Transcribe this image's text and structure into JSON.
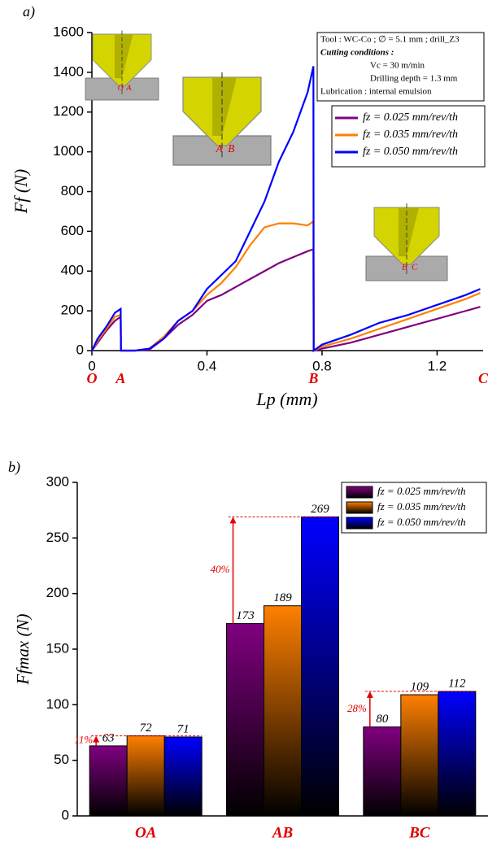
{
  "chart_data": [
    {
      "type": "line",
      "panel_label": "a)",
      "xlabel": "Lp (mm)",
      "ylabel": "Ff (N)",
      "x": [
        0,
        0.02,
        0.05,
        0.08,
        0.1,
        0.101,
        0.15,
        0.2,
        0.25,
        0.3,
        0.35,
        0.4,
        0.45,
        0.5,
        0.55,
        0.6,
        0.65,
        0.7,
        0.75,
        0.77,
        0.771,
        0.8,
        0.9,
        1.0,
        1.1,
        1.2,
        1.3,
        1.35
      ],
      "series": [
        {
          "name": "fz = 0.025 mm/rev/th",
          "color": "#800080",
          "values": [
            0,
            40,
            100,
            150,
            170,
            0,
            0,
            5,
            60,
            130,
            180,
            250,
            280,
            320,
            360,
            400,
            440,
            470,
            500,
            510,
            0,
            10,
            40,
            80,
            120,
            160,
            200,
            220
          ]
        },
        {
          "name": "fz = 0.035 mm/rev/th",
          "color": "#ff8000",
          "values": [
            0,
            50,
            110,
            170,
            180,
            0,
            0,
            10,
            70,
            150,
            200,
            280,
            340,
            420,
            530,
            620,
            640,
            640,
            630,
            650,
            0,
            20,
            60,
            110,
            160,
            210,
            260,
            290
          ]
        },
        {
          "name": "fz = 0.050 mm/rev/th",
          "color": "#0000ff",
          "values": [
            0,
            60,
            120,
            190,
            210,
            0,
            0,
            10,
            60,
            150,
            200,
            310,
            380,
            450,
            600,
            750,
            950,
            1100,
            1300,
            1430,
            0,
            30,
            80,
            140,
            180,
            230,
            280,
            310
          ]
        }
      ],
      "xlim": [
        0,
        1.36
      ],
      "ylim": [
        0,
        1600
      ],
      "xticks": [
        0,
        0.4,
        0.8,
        1.2
      ],
      "yticks": [
        0,
        200,
        400,
        600,
        800,
        1000,
        1200,
        1400,
        1600
      ],
      "point_labels": [
        "O",
        "A",
        "B",
        "C"
      ],
      "point_x": [
        0,
        0.1,
        0.77,
        1.36
      ],
      "info_box": [
        "Tool : WC-Co ; ∅ = 5.1 mm ; drill_Z3",
        "Cutting conditions :",
        "Vc = 30 m/min",
        "Drilling depth = 1.3 mm",
        "Lubrication : internal emulsion"
      ],
      "drill_labels": [
        [
          "O",
          "A"
        ],
        [
          "A",
          "B"
        ],
        [
          "B",
          "C"
        ]
      ]
    },
    {
      "type": "bar",
      "panel_label": "b)",
      "ylabel": "Ffmax (N)",
      "categories": [
        "OA",
        "AB",
        "BC"
      ],
      "series": [
        {
          "name": "fz = 0.025 mm/rev/th",
          "color": "#800080",
          "values": [
            63,
            173,
            80
          ]
        },
        {
          "name": "fz = 0.035 mm/rev/th",
          "color": "#ff8000",
          "values": [
            72,
            189,
            109
          ]
        },
        {
          "name": "fz = 0.050 mm/rev/th",
          "color": "#0000ff",
          "values": [
            71,
            269,
            112
          ]
        }
      ],
      "ylim": [
        0,
        300
      ],
      "yticks": [
        0,
        50,
        100,
        150,
        200,
        250,
        300
      ],
      "annotations": [
        "11%",
        "40%",
        "28%"
      ]
    }
  ]
}
